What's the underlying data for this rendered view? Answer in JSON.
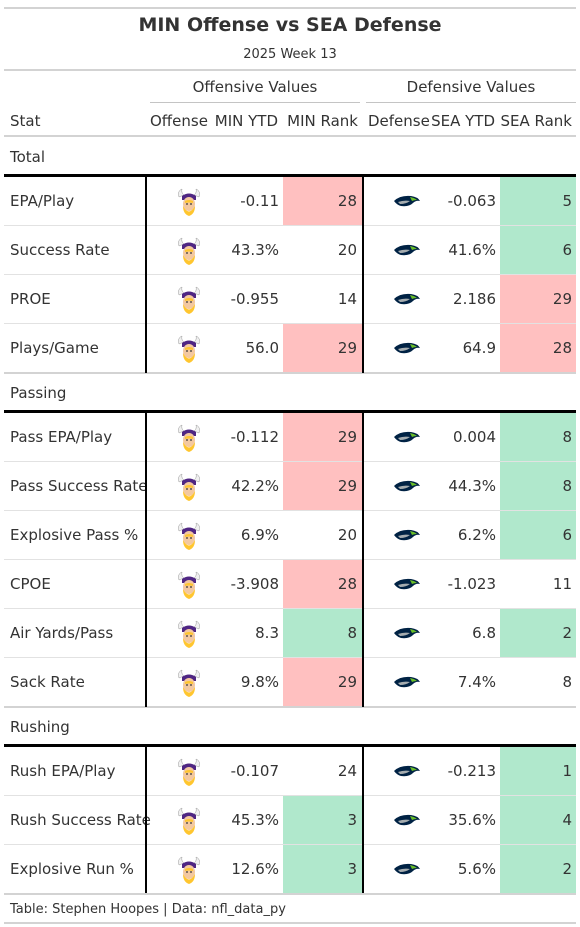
{
  "title": "MIN Offense vs SEA Defense",
  "subtitle": "2025 Week 13",
  "spanners": {
    "offense": "Offensive Values",
    "defense": "Defensive Values"
  },
  "columns": {
    "stat": "Stat",
    "offense": "Offense",
    "min_ytd": "MIN YTD",
    "min_rank": "MIN Rank",
    "defense": "Defense",
    "sea_ytd": "SEA YTD",
    "sea_rank": "SEA Rank"
  },
  "colors": {
    "bad": "#ffc0c0",
    "good": "#b0e8cc",
    "vikings_purple": "#4f2683",
    "vikings_gold": "#ffc62f",
    "seahawks_navy": "#002244",
    "seahawks_green": "#69be28",
    "seahawks_grey": "#a5acaf"
  },
  "icons": {
    "offense_logo": "vikings-logo-icon",
    "defense_logo": "seahawks-logo-icon"
  },
  "groups": [
    {
      "name": "Total",
      "rows": [
        {
          "stat": "EPA/Play",
          "min_ytd": "-0.11",
          "min_rank": "28",
          "min_rank_color": "bad",
          "sea_ytd": "-0.063",
          "sea_rank": "5",
          "sea_rank_color": "good"
        },
        {
          "stat": "Success Rate",
          "min_ytd": "43.3%",
          "min_rank": "20",
          "min_rank_color": "",
          "sea_ytd": "41.6%",
          "sea_rank": "6",
          "sea_rank_color": "good"
        },
        {
          "stat": "PROE",
          "min_ytd": "-0.955",
          "min_rank": "14",
          "min_rank_color": "",
          "sea_ytd": "2.186",
          "sea_rank": "29",
          "sea_rank_color": "bad"
        },
        {
          "stat": "Plays/Game",
          "min_ytd": "56.0",
          "min_rank": "29",
          "min_rank_color": "bad",
          "sea_ytd": "64.9",
          "sea_rank": "28",
          "sea_rank_color": "bad"
        }
      ]
    },
    {
      "name": "Passing",
      "rows": [
        {
          "stat": "Pass EPA/Play",
          "min_ytd": "-0.112",
          "min_rank": "29",
          "min_rank_color": "bad",
          "sea_ytd": "0.004",
          "sea_rank": "8",
          "sea_rank_color": "good"
        },
        {
          "stat": "Pass Success Rate",
          "min_ytd": "42.2%",
          "min_rank": "29",
          "min_rank_color": "bad",
          "sea_ytd": "44.3%",
          "sea_rank": "8",
          "sea_rank_color": "good"
        },
        {
          "stat": "Explosive Pass %",
          "min_ytd": "6.9%",
          "min_rank": "20",
          "min_rank_color": "",
          "sea_ytd": "6.2%",
          "sea_rank": "6",
          "sea_rank_color": "good"
        },
        {
          "stat": "CPOE",
          "min_ytd": "-3.908",
          "min_rank": "28",
          "min_rank_color": "bad",
          "sea_ytd": "-1.023",
          "sea_rank": "11",
          "sea_rank_color": ""
        },
        {
          "stat": "Air Yards/Pass",
          "min_ytd": "8.3",
          "min_rank": "8",
          "min_rank_color": "good",
          "sea_ytd": "6.8",
          "sea_rank": "2",
          "sea_rank_color": "good"
        },
        {
          "stat": "Sack Rate",
          "min_ytd": "9.8%",
          "min_rank": "29",
          "min_rank_color": "bad",
          "sea_ytd": "7.4%",
          "sea_rank": "8",
          "sea_rank_color": ""
        }
      ]
    },
    {
      "name": "Rushing",
      "rows": [
        {
          "stat": "Rush EPA/Play",
          "min_ytd": "-0.107",
          "min_rank": "24",
          "min_rank_color": "",
          "sea_ytd": "-0.213",
          "sea_rank": "1",
          "sea_rank_color": "good"
        },
        {
          "stat": "Rush Success Rate",
          "min_ytd": "45.3%",
          "min_rank": "3",
          "min_rank_color": "good",
          "sea_ytd": "35.6%",
          "sea_rank": "4",
          "sea_rank_color": "good"
        },
        {
          "stat": "Explosive Run %",
          "min_ytd": "12.6%",
          "min_rank": "3",
          "min_rank_color": "good",
          "sea_ytd": "5.6%",
          "sea_rank": "2",
          "sea_rank_color": "good"
        }
      ]
    }
  ],
  "footer": "Table: Stephen Hoopes | Data: nfl_data_py"
}
